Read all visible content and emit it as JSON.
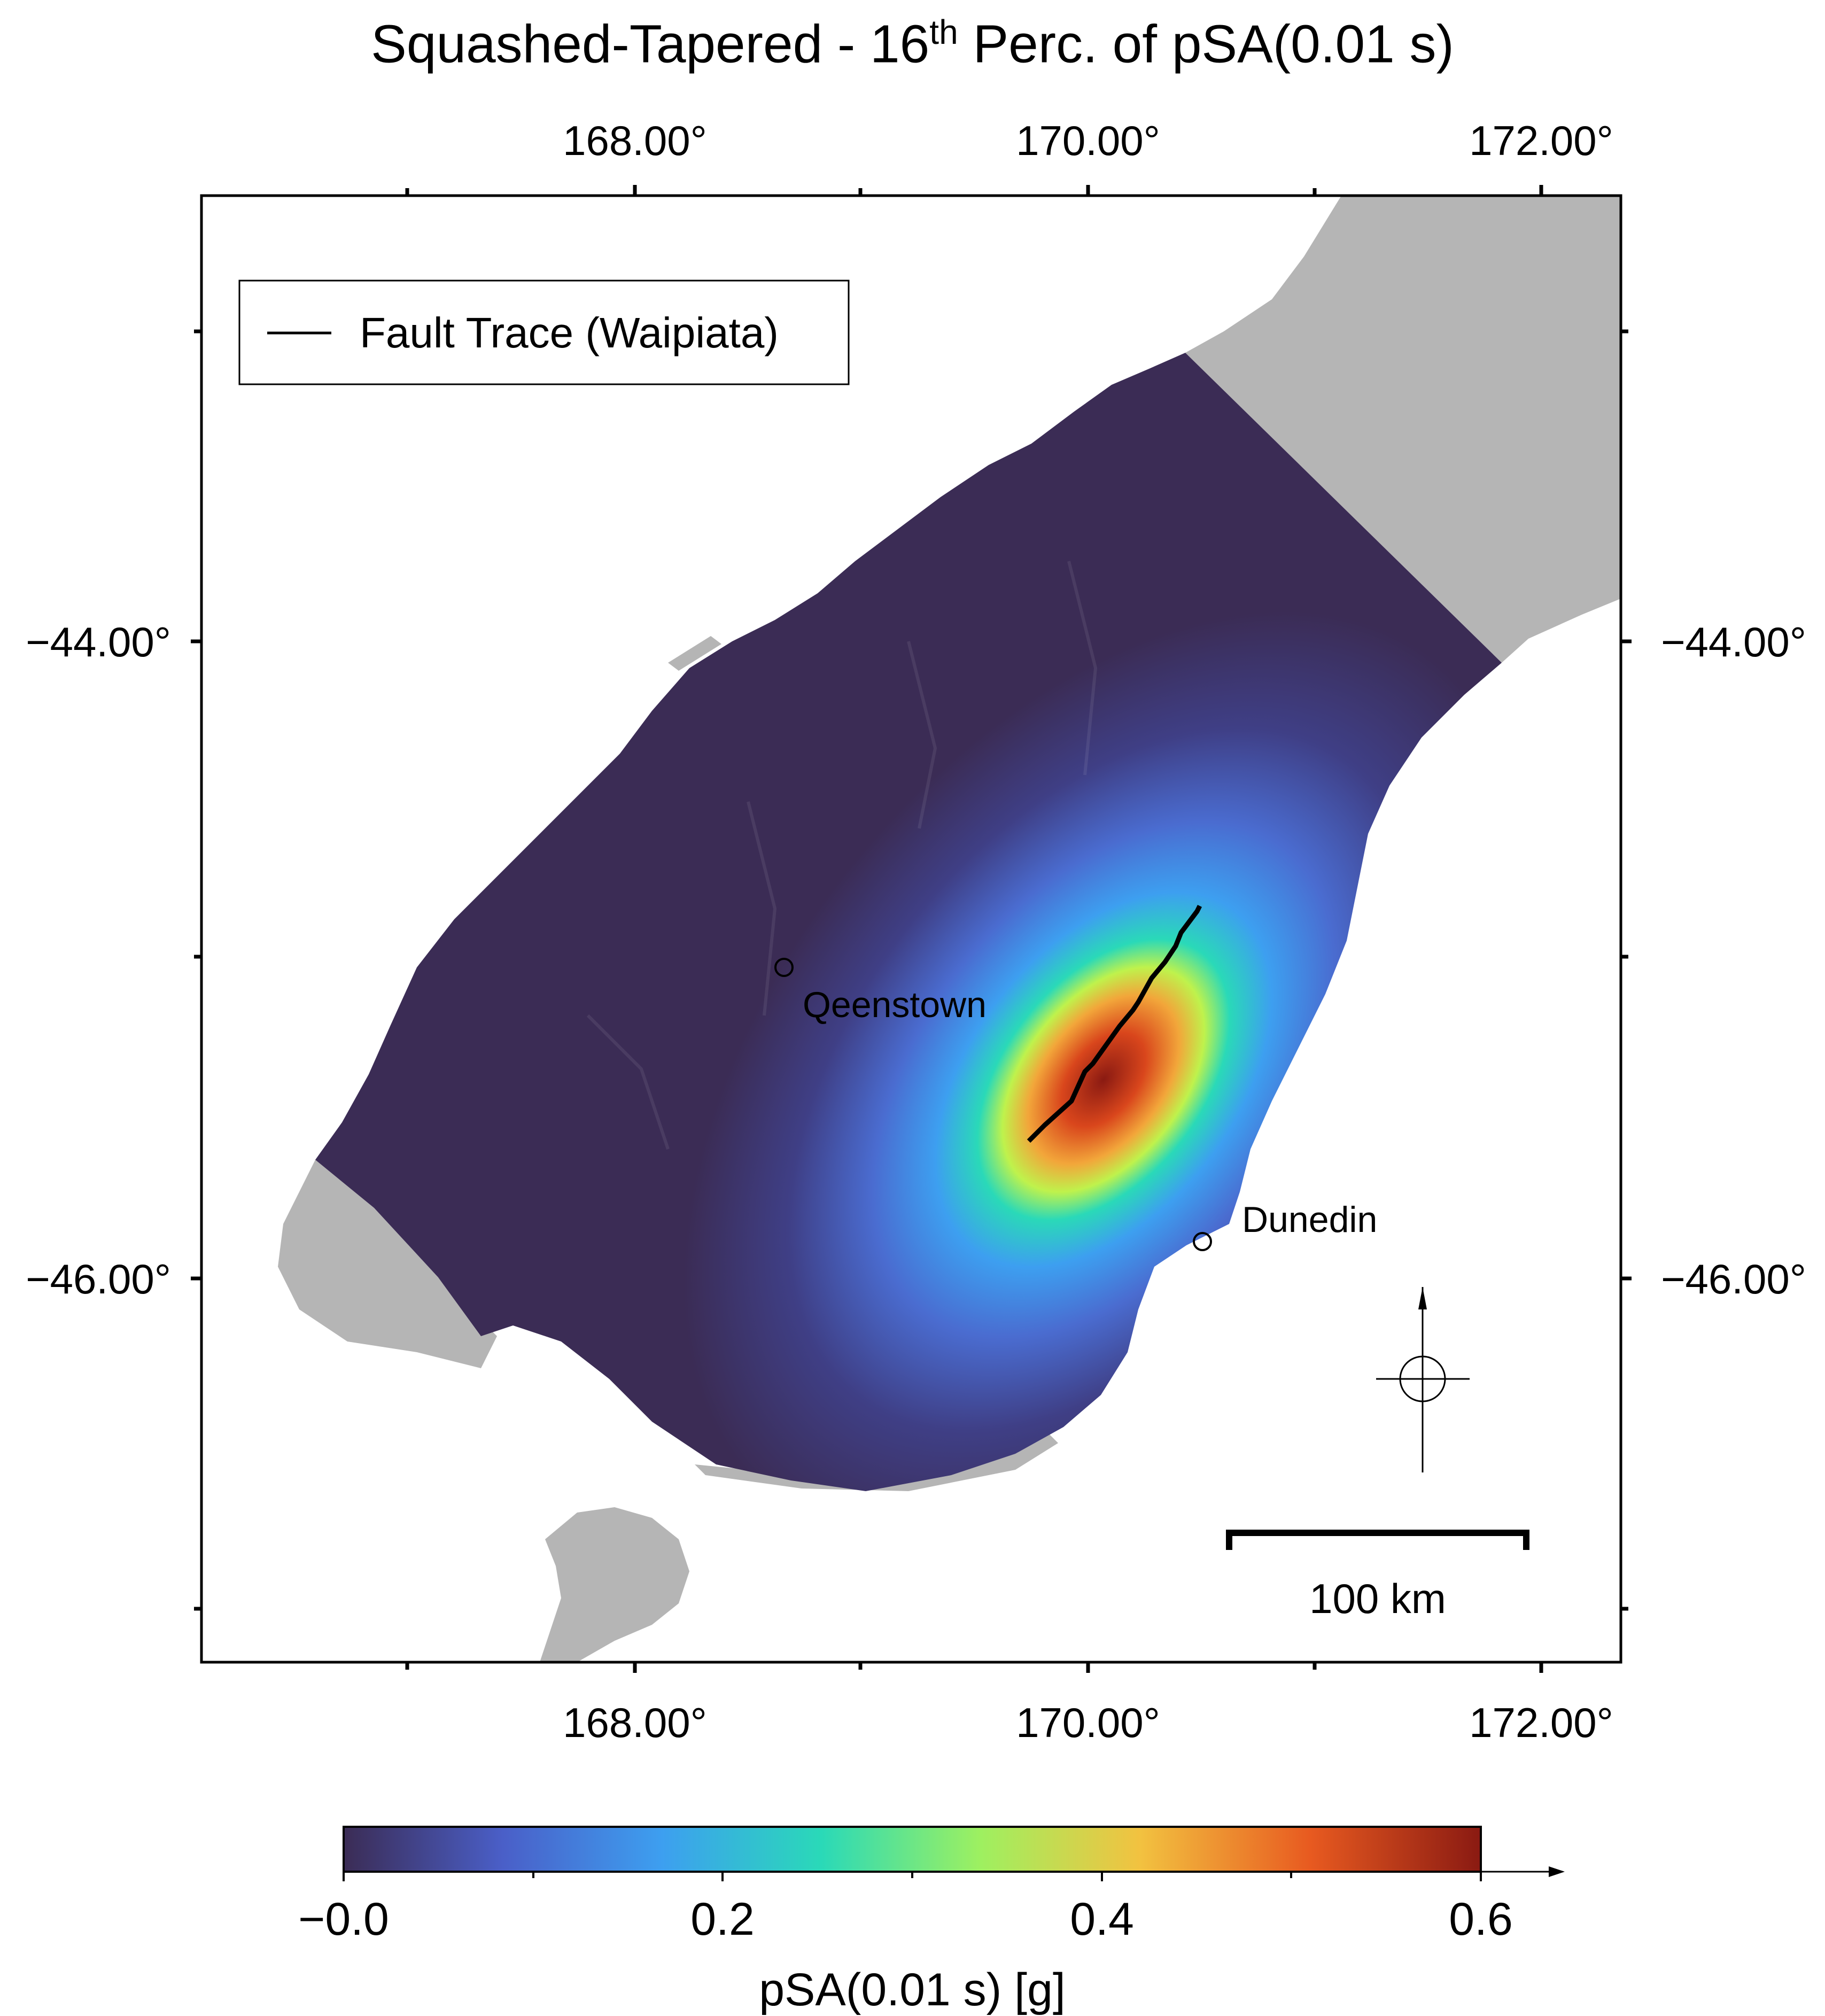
{
  "title": {
    "prefix": "Squashed-Tapered - 16",
    "superscript": "th",
    "suffix": " Perc. of pSA(0.01 s)"
  },
  "axes": {
    "x_ticks": [
      "168.00°",
      "170.00°",
      "172.00°"
    ],
    "y_ticks": [
      "−44.00°",
      "−46.00°"
    ]
  },
  "legend": {
    "label": "Fault Trace (Waipiata)"
  },
  "places": [
    {
      "name": "Qeenstown"
    },
    {
      "name": "Dunedin"
    }
  ],
  "scale_bar": {
    "label": "100 km"
  },
  "colorbar": {
    "ticks": [
      "−0.0",
      "0.2",
      "0.4",
      "0.6"
    ],
    "label": "pSA(0.01 s) [g]",
    "min": 0.0,
    "max": 0.6,
    "colors": [
      "#3b2c55",
      "#4a5fc8",
      "#3d9ff0",
      "#2ad9b8",
      "#9ef060",
      "#f2c240",
      "#e85a20",
      "#8a1a12"
    ]
  },
  "colors": {
    "land_masked": "#b5b5b5",
    "background": "#ffffff",
    "fault_trace": "#000000"
  }
}
